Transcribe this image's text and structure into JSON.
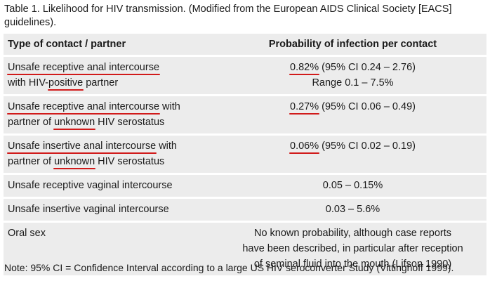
{
  "caption": "Table 1. Likelihood for HIV transmission. (Modified from the European AIDS Clinical Society [EACS] guidelines).",
  "headers": {
    "contact": "Type of contact / partner",
    "probability": "Probability of infection per contact"
  },
  "rows": [
    {
      "contact_a": "Unsafe receptive anal intercourse",
      "contact_b": "with HIV-",
      "contact_c": "positive",
      "contact_d": " partner",
      "prob_value": "0.82%",
      "prob_rest": " (95% CI 0.24 – 2.76)",
      "prob_line2": "Range 0.1 – 7.5%"
    },
    {
      "contact_a": "Unsafe receptive anal intercourse",
      "contact_a_rest": " with",
      "contact_b": "partner of ",
      "contact_c": "unknown",
      "contact_d": " HIV serostatus",
      "prob_value": "0.27%",
      "prob_rest": " (95% CI 0.06 – 0.49)"
    },
    {
      "contact_a": "Unsafe insertive anal intercourse",
      "contact_a_rest": " with",
      "contact_b": "partner of ",
      "contact_c": "unknown",
      "contact_d": " HIV serostatus",
      "prob_value": "0.06%",
      "prob_rest": " (95% CI 0.02 – 0.19)"
    },
    {
      "contact": "Unsafe receptive vaginal intercourse",
      "prob": "0.05 – 0.15%"
    },
    {
      "contact": "Unsafe insertive vaginal intercourse",
      "prob": "0.03 – 5.6%"
    },
    {
      "contact": "Oral sex",
      "prob_line1": "No known probability, although case reports",
      "prob_line2": "have been described, in particular after reception",
      "prob_line3": "of seminal fluid into the mouth (Lifson 1990)"
    }
  ],
  "note": "Note: 95% CI = Confidence Interval according to a large US HIV seroconverter Study (Vittinghoff 1999).",
  "colors": {
    "row_background": "#ececec",
    "underline": "#d11a1a"
  }
}
